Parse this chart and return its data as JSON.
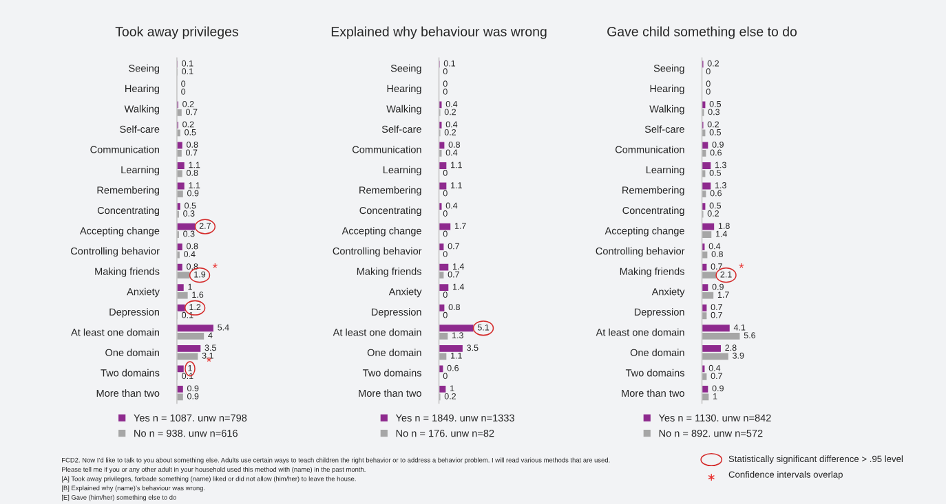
{
  "chart_data": [
    {
      "type": "bar",
      "orientation": "horizontal",
      "title": "Took away privileges",
      "tick_labels": "y",
      "legend": "bottom",
      "grid": false,
      "categories": [
        "Seeing",
        "Hearing",
        "Walking",
        "Self-care",
        "Communication",
        "Learning",
        "Remembering",
        "Concentrating",
        "Accepting change",
        "Controlling behavior",
        "Making friends",
        "Anxiety",
        "Depression",
        "At least one domain",
        "One domain",
        "Two domains",
        "More than two"
      ],
      "series": [
        {
          "name": "Yes n = 1087. unw n=798",
          "color": "#8e2a8e",
          "values": [
            0.1,
            0,
            0.2,
            0.2,
            0.8,
            1.1,
            1.1,
            0.5,
            2.7,
            0.8,
            0.8,
            1,
            1.2,
            5.4,
            3.5,
            1,
            0.9
          ],
          "value_labels": [
            "0.1",
            "0",
            "0.2",
            "0.2",
            "0.8",
            "1.1",
            "1.1",
            "0.5",
            null,
            "0.8",
            "0.8",
            "1",
            null,
            "5.4",
            "3.5",
            null,
            "0.9"
          ]
        },
        {
          "name": "No n = 938. unw n=616",
          "color": "#a6a6a6",
          "values": [
            0.1,
            0,
            0.7,
            0.5,
            0.7,
            0.8,
            0.9,
            0.3,
            0.3,
            0.4,
            1.9,
            1.6,
            0.1,
            4,
            3.1,
            0.1,
            0.9
          ],
          "value_labels": [
            "0.1",
            "0",
            "0.7",
            "0.5",
            "0.7",
            "0.8",
            "0.9",
            "0.3",
            "0.3",
            "0.4",
            null,
            "1.6",
            "0.1",
            "4",
            "3.1",
            "0.1",
            "0.9"
          ]
        }
      ],
      "annotations": [
        {
          "text": "2.7",
          "x": 2.7,
          "y": "Accepting change"
        },
        {
          "text": "1.9",
          "x": 1.9,
          "y": "Making friends"
        },
        {
          "text": "*",
          "x": 1.9,
          "y": "Making friends"
        },
        {
          "text": "1.2",
          "x": 1.2,
          "y": "Depression"
        },
        {
          "text": "1",
          "x": 1,
          "y": "Two domains"
        },
        {
          "text": "*",
          "x": 1,
          "y": "Two domains"
        },
        "FCD2. Now I’d like to talk to you about something else. Adults use certain ways to teach children the right behavior or to address a behavior problem. I will read various methods that are used.",
        "Please tell me if you or any other adult in your household used this method with (name) in the past month.",
        "[A] Took away privileges, forbade something (name) liked or did not allow (him/her) to leave the house.",
        "[B] Explained why (name)’s behaviour was wrong.",
        "[E] Gave (him/her) something else to do"
      ]
    },
    {
      "type": "bar",
      "orientation": "horizontal",
      "title": "Explained why behaviour was wrong",
      "tick_labels": "y",
      "legend": "bottom",
      "grid": false,
      "categories": [
        "Seeing",
        "Hearing",
        "Walking",
        "Self-care",
        "Communication",
        "Learning",
        "Remembering",
        "Concentrating",
        "Accepting change",
        "Controlling behavior",
        "Making friends",
        "Anxiety",
        "Depression",
        "At least one domain",
        "One domain",
        "Two domains",
        "More than two"
      ],
      "series": [
        {
          "name": "Yes n = 1849. unw n=1333",
          "color": "#8e2a8e",
          "values": [
            0.1,
            0,
            0.4,
            0.4,
            0.8,
            1.1,
            1.1,
            0.4,
            1.7,
            0.7,
            1.4,
            1.4,
            0.8,
            5.1,
            3.5,
            0.6,
            1
          ],
          "value_labels": [
            "0.1",
            "0",
            "0.4",
            "0.4",
            "0.8",
            "1.1",
            "1.1",
            "0.4",
            "1.7",
            "0.7",
            "1.4",
            "1.4",
            "0.8",
            null,
            "3.5",
            "0.6",
            "1"
          ]
        },
        {
          "name": "No n = 176. unw n=82",
          "color": "#a6a6a6",
          "values": [
            0,
            0,
            0.2,
            0.2,
            0.4,
            0,
            0,
            0,
            0,
            0,
            0.7,
            0,
            0,
            1.3,
            1.1,
            0,
            0.2
          ],
          "value_labels": [
            "0",
            "0",
            "0.2",
            "0.2",
            "0.4",
            "0",
            "0",
            "0",
            "0",
            "0",
            "0.7",
            "0",
            "0",
            "1.3",
            "1.1",
            "0",
            "0.2"
          ]
        }
      ],
      "annotations": [
        {
          "text": "5.1",
          "x": 5.1,
          "y": "At least one domain"
        }
      ]
    },
    {
      "type": "bar",
      "orientation": "horizontal",
      "title": "Gave child something else to do",
      "tick_labels": "y",
      "legend": "bottom",
      "grid": false,
      "categories": [
        "Seeing",
        "Hearing",
        "Walking",
        "Self-care",
        "Communication",
        "Learning",
        "Remembering",
        "Concentrating",
        "Accepting change",
        "Controlling behavior",
        "Making friends",
        "Anxiety",
        "Depression",
        "At least one domain",
        "One domain",
        "Two domains",
        "More than two"
      ],
      "series": [
        {
          "name": "Yes n = 1130. unw n=842",
          "color": "#8e2a8e",
          "values": [
            0.2,
            0,
            0.5,
            0.2,
            0.9,
            1.3,
            1.3,
            0.5,
            1.8,
            0.4,
            0.7,
            0.9,
            0.7,
            4.1,
            2.8,
            0.4,
            0.9
          ],
          "value_labels": [
            "0.2",
            "0",
            "0.5",
            "0.2",
            "0.9",
            "1.3",
            "1.3",
            "0.5",
            "1.8",
            "0.4",
            "0.7",
            "0.9",
            "0.7",
            "4.1",
            "2.8",
            "0.4",
            "0.9"
          ]
        },
        {
          "name": "No n = 892. unw n=572",
          "color": "#a6a6a6",
          "values": [
            0,
            0,
            0.3,
            0.5,
            0.6,
            0.5,
            0.6,
            0.2,
            1.4,
            0.8,
            2.1,
            1.7,
            0.7,
            5.6,
            3.9,
            0.7,
            1
          ],
          "value_labels": [
            "0",
            "0",
            "0.3",
            "0.5",
            "0.6",
            "0.5",
            "0.6",
            "0.2",
            "1.4",
            "0.8",
            null,
            "1.7",
            "0.7",
            "5.6",
            "3.9",
            "0.7",
            "1"
          ]
        }
      ],
      "annotations": [
        {
          "text": "2.1",
          "x": 2.1,
          "y": "Making friends"
        },
        {
          "text": "*",
          "x": 2.1,
          "y": "Making friends"
        },
        "Statistically significant difference > .95 level",
        "Confidence intervals overlap"
      ]
    }
  ]
}
